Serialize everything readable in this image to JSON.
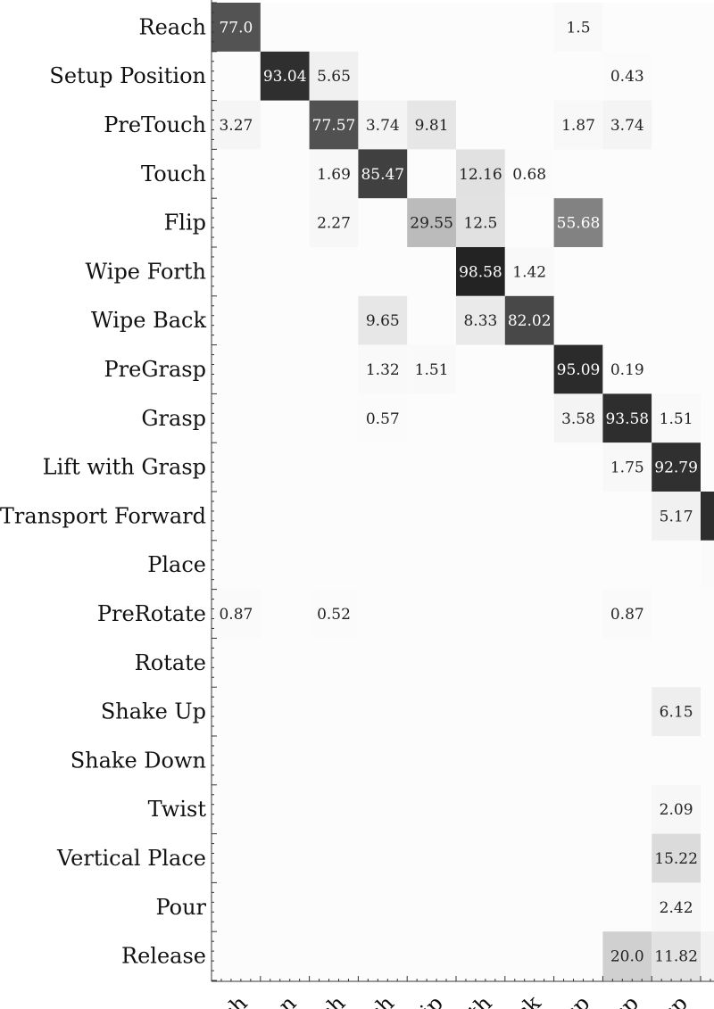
{
  "chart_data": {
    "type": "heatmap",
    "title": "",
    "xlabel": "",
    "ylabel": "",
    "rows": [
      "Reach",
      "Setup Position",
      "PreTouch",
      "Touch",
      "Flip",
      "Wipe Forth",
      "Wipe Back",
      "PreGrasp",
      "Grasp",
      "Lift with Grasp",
      "Transport Forward",
      "Place",
      "PreRotate",
      "Rotate",
      "Shake Up",
      "Shake Down",
      "Twist",
      "Vertical Place",
      "Pour",
      "Release"
    ],
    "col_tick_labels": [
      "ch",
      "on",
      "ch",
      "ch",
      "lip",
      "th",
      "ck",
      "sp",
      "sp",
      "sp"
    ],
    "cells": [
      {
        "row": 0,
        "col": 0,
        "value": "77.0"
      },
      {
        "row": 0,
        "col": 7,
        "value": "1.5"
      },
      {
        "row": 1,
        "col": 1,
        "value": "93.04"
      },
      {
        "row": 1,
        "col": 2,
        "value": "5.65"
      },
      {
        "row": 1,
        "col": 8,
        "value": "0.43"
      },
      {
        "row": 2,
        "col": 0,
        "value": "3.27"
      },
      {
        "row": 2,
        "col": 2,
        "value": "77.57"
      },
      {
        "row": 2,
        "col": 3,
        "value": "3.74"
      },
      {
        "row": 2,
        "col": 4,
        "value": "9.81"
      },
      {
        "row": 2,
        "col": 7,
        "value": "1.87"
      },
      {
        "row": 2,
        "col": 8,
        "value": "3.74"
      },
      {
        "row": 3,
        "col": 2,
        "value": "1.69"
      },
      {
        "row": 3,
        "col": 3,
        "value": "85.47"
      },
      {
        "row": 3,
        "col": 5,
        "value": "12.16"
      },
      {
        "row": 3,
        "col": 6,
        "value": "0.68"
      },
      {
        "row": 4,
        "col": 2,
        "value": "2.27"
      },
      {
        "row": 4,
        "col": 4,
        "value": "29.55"
      },
      {
        "row": 4,
        "col": 5,
        "value": "12.5"
      },
      {
        "row": 4,
        "col": 7,
        "value": "55.68"
      },
      {
        "row": 5,
        "col": 5,
        "value": "98.58"
      },
      {
        "row": 5,
        "col": 6,
        "value": "1.42"
      },
      {
        "row": 6,
        "col": 3,
        "value": "9.65"
      },
      {
        "row": 6,
        "col": 5,
        "value": "8.33"
      },
      {
        "row": 6,
        "col": 6,
        "value": "82.02"
      },
      {
        "row": 7,
        "col": 3,
        "value": "1.32"
      },
      {
        "row": 7,
        "col": 4,
        "value": "1.51"
      },
      {
        "row": 7,
        "col": 7,
        "value": "95.09"
      },
      {
        "row": 7,
        "col": 8,
        "value": "0.19"
      },
      {
        "row": 8,
        "col": 3,
        "value": "0.57"
      },
      {
        "row": 8,
        "col": 7,
        "value": "3.58"
      },
      {
        "row": 8,
        "col": 8,
        "value": "93.58"
      },
      {
        "row": 8,
        "col": 9,
        "value": "1.51"
      },
      {
        "row": 9,
        "col": 8,
        "value": "1.75"
      },
      {
        "row": 9,
        "col": 9,
        "value": "92.79"
      },
      {
        "row": 10,
        "col": 9,
        "value": "5.17"
      },
      {
        "row": 10,
        "col": 10,
        "value": "94"
      },
      {
        "row": 11,
        "col": 10,
        "value": "1"
      },
      {
        "row": 12,
        "col": 0,
        "value": "0.87"
      },
      {
        "row": 12,
        "col": 2,
        "value": "0.52"
      },
      {
        "row": 12,
        "col": 8,
        "value": "0.87"
      },
      {
        "row": 14,
        "col": 9,
        "value": "6.15"
      },
      {
        "row": 16,
        "col": 9,
        "value": "2.09"
      },
      {
        "row": 17,
        "col": 9,
        "value": "15.22"
      },
      {
        "row": 18,
        "col": 9,
        "value": "2.42"
      },
      {
        "row": 19,
        "col": 8,
        "value": "20.0"
      },
      {
        "row": 19,
        "col": 9,
        "value": "11.82"
      },
      {
        "row": 19,
        "col": 10,
        "value": "4"
      }
    ],
    "value_range": [
      0,
      100
    ],
    "colormap": "white-to-black (grays)",
    "background_color": "#fcfcfc",
    "grid": false,
    "legend": "none"
  }
}
